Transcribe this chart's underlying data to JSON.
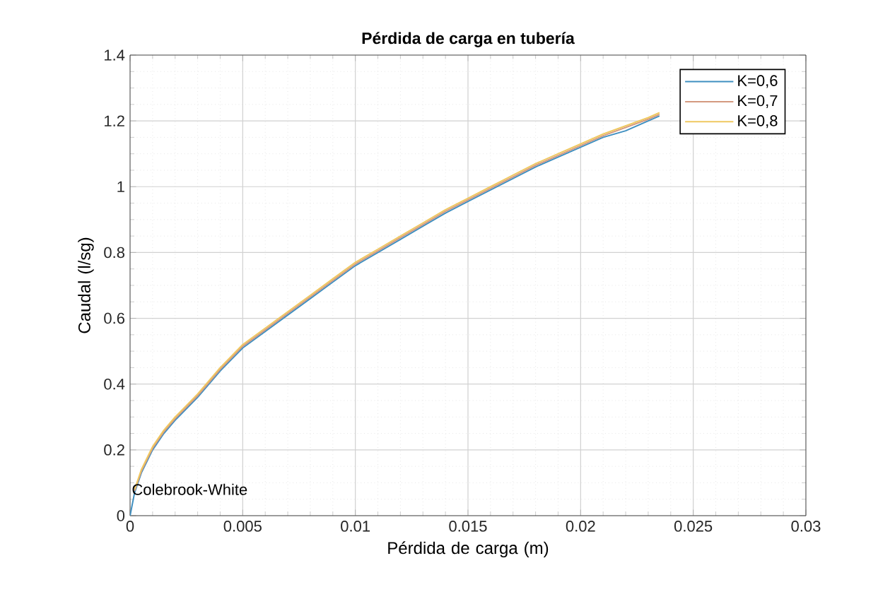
{
  "chart_data": {
    "type": "line",
    "title": "Pérdida de carga en tubería",
    "xlabel": "Pérdida de carga (m)",
    "ylabel": "Caudal (l/sg)",
    "x": [
      0,
      0.0002,
      0.0005,
      0.001,
      0.0015,
      0.002,
      0.003,
      0.004,
      0.005,
      0.006,
      0.007,
      0.008,
      0.009,
      0.01,
      0.011,
      0.012,
      0.013,
      0.014,
      0.015,
      0.016,
      0.017,
      0.018,
      0.019,
      0.02,
      0.021,
      0.022,
      0.023,
      0.0235
    ],
    "series": [
      {
        "name": "K=0,6",
        "color": "#3f8fc0",
        "values": [
          0,
          0.07,
          0.13,
          0.2,
          0.25,
          0.29,
          0.36,
          0.44,
          0.51,
          0.56,
          0.61,
          0.66,
          0.71,
          0.76,
          0.8,
          0.84,
          0.88,
          0.92,
          0.955,
          0.99,
          1.025,
          1.06,
          1.09,
          1.12,
          1.15,
          1.17,
          1.2,
          1.215
        ]
      },
      {
        "name": "K=0,7",
        "color": "#d49a80",
        "values": [
          null,
          0.075,
          0.135,
          0.205,
          0.255,
          0.295,
          0.365,
          0.445,
          0.515,
          0.565,
          0.615,
          0.665,
          0.715,
          0.765,
          0.805,
          0.845,
          0.885,
          0.925,
          0.96,
          0.995,
          1.03,
          1.065,
          1.095,
          1.125,
          1.155,
          1.18,
          1.205,
          1.22
        ]
      },
      {
        "name": "K=0,8",
        "color": "#efc860",
        "values": [
          null,
          0.08,
          0.14,
          0.21,
          0.26,
          0.3,
          0.37,
          0.45,
          0.52,
          0.57,
          0.62,
          0.67,
          0.72,
          0.77,
          0.81,
          0.85,
          0.89,
          0.93,
          0.965,
          1.0,
          1.035,
          1.07,
          1.1,
          1.13,
          1.16,
          1.185,
          1.21,
          1.225
        ]
      }
    ],
    "annotations": [
      {
        "text": "Colebrook-White",
        "x": 0,
        "y": 0.08
      }
    ],
    "xlim": [
      0,
      0.03
    ],
    "ylim": [
      0,
      1.4
    ],
    "xticks": [
      0,
      0.005,
      0.01,
      0.015,
      0.02,
      0.025,
      0.03
    ],
    "yticks": [
      0,
      0.2,
      0.4,
      0.6,
      0.8,
      1,
      1.2,
      1.4
    ],
    "grid": true,
    "legend": "top right",
    "marker": "none",
    "line_style": "solid"
  }
}
